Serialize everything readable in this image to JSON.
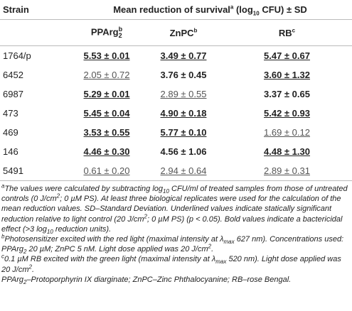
{
  "table": {
    "strain_header": "Strain",
    "group_header": [
      "Mean reduction of survival",
      "a",
      " (log",
      "10",
      " CFU) ± SD"
    ],
    "columns": [
      [
        "PPArg",
        "b",
        "2"
      ],
      [
        "ZnPC",
        "b"
      ],
      [
        "RB",
        "c"
      ]
    ],
    "rows": [
      {
        "strain": "1764/p",
        "cells": [
          {
            "text": "5.53 ± 0.01",
            "bold": true,
            "underline": true
          },
          {
            "text": "3.49 ± 0.77",
            "bold": true,
            "underline": true
          },
          {
            "text": "5.47 ± 0.67",
            "bold": true,
            "underline": true
          }
        ]
      },
      {
        "strain": "6452",
        "cells": [
          {
            "text": "2.05 ± 0.72",
            "bold": false,
            "underline": true
          },
          {
            "text": "3.76 ± 0.45",
            "bold": true,
            "underline": false
          },
          {
            "text": "3.60 ± 1.32",
            "bold": true,
            "underline": true
          }
        ]
      },
      {
        "strain": "6987",
        "cells": [
          {
            "text": "5.29 ± 0.01",
            "bold": true,
            "underline": true
          },
          {
            "text": "2.89 ± 0.55",
            "bold": false,
            "underline": true
          },
          {
            "text": "3.37 ± 0.65",
            "bold": true,
            "underline": false
          }
        ]
      },
      {
        "strain": "473",
        "cells": [
          {
            "text": "5.45 ± 0.04",
            "bold": true,
            "underline": true
          },
          {
            "text": "4.90 ± 0.18",
            "bold": true,
            "underline": true
          },
          {
            "text": "5.42 ± 0.93",
            "bold": true,
            "underline": true
          }
        ]
      },
      {
        "strain": "469",
        "cells": [
          {
            "text": "3.53 ± 0.55",
            "bold": true,
            "underline": true
          },
          {
            "text": "5.77 ± 0.10",
            "bold": true,
            "underline": true
          },
          {
            "text": "1.69 ± 0.12",
            "bold": false,
            "underline": true
          }
        ]
      },
      {
        "strain": "146",
        "cells": [
          {
            "text": "4.46 ± 0.30",
            "bold": true,
            "underline": true
          },
          {
            "text": "4.56 ± 1.06",
            "bold": true,
            "underline": false
          },
          {
            "text": "4.48 ± 1.30",
            "bold": true,
            "underline": true
          }
        ]
      },
      {
        "strain": "5491",
        "cells": [
          {
            "text": "0.61 ± 0.20",
            "bold": false,
            "underline": true
          },
          {
            "text": "2.94 ± 0.64",
            "bold": false,
            "underline": true
          },
          {
            "text": "2.89 ± 0.31",
            "bold": false,
            "underline": true
          }
        ]
      }
    ]
  },
  "footnotes": {
    "a": [
      "a",
      "The values were calculated by subtracting log",
      "10",
      " CFU/ml of treated samples from those of untreated controls (0 J/cm",
      "2",
      "; 0 µM PS). At least three biological replicates were used for the calculation of the mean reduction values. SD–Standard Deviation. Underlined values indicate statically significant reduction relative to light control (20 J/cm",
      "2",
      "; 0 µM PS) (p < 0.05). Bold values indicate a bactericidal effect (>3 log",
      "10",
      " reduction units)."
    ],
    "b": [
      "b",
      "Photosensitizer excited with the red light (maximal intensity at λ",
      "max",
      " 627 nm). Concentrations used: PPArg",
      "2",
      " 20 µM; ZnPC 5 nM. Light dose applied was 20 J/cm",
      "2",
      "."
    ],
    "c": [
      "c",
      "0.1 µM RB excited with the green light (maximal intensity at λ",
      "max",
      " 520 nm). Light dose applied was 20 J/cm",
      "2",
      "."
    ],
    "abbr": [
      "PPArg",
      "2",
      "–Protoporphyrin IX diarginate; ZnPC–Zinc Phthalocyanine; RB–rose Bengal."
    ]
  }
}
